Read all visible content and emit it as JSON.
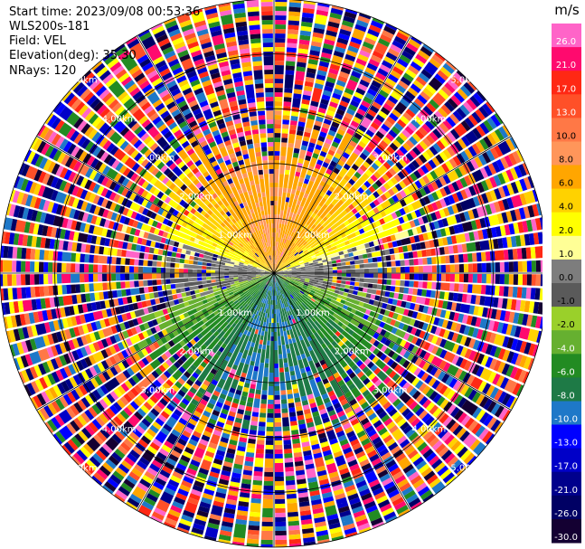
{
  "header": {
    "start_time": "Start time: 2023/09/08 00:53:36",
    "instrument": "WLS200s-181",
    "field": "Field: VEL",
    "elevation": "Elevation(deg): 35.30",
    "nrays": "NRays: 120"
  },
  "chart_data": {
    "type": "heatmap",
    "projection": "polar PPI",
    "field": "VEL",
    "unit": "m/s",
    "nrays": 120,
    "elevation_deg": 35.3,
    "range_rings_km": [
      1.0,
      2.0,
      3.0,
      4.0,
      5.0
    ],
    "range_ring_labels": [
      "1.00km",
      "2.00km",
      "3.00km",
      "4.00km",
      "5.00km"
    ],
    "max_range_km": 5.0,
    "colorbar": {
      "ticks": [
        "26.0",
        "21.0",
        "17.0",
        "13.0",
        "10.0",
        "8.0",
        "6.0",
        "4.0",
        "2.0",
        "1.0",
        "0.0",
        "-1.0",
        "-2.0",
        "-4.0",
        "-6.0",
        "-8.0",
        "-10.0",
        "-13.0",
        "-17.0",
        "-21.0",
        "-26.0",
        "-30.0"
      ],
      "colors": [
        "#ff64c8",
        "#ff0a6e",
        "#ff2814",
        "#ff5028",
        "#ff7846",
        "#ff965a",
        "#ffa600",
        "#ffd200",
        "#ffff00",
        "#ffff96",
        "#7d7d7d",
        "#5a5a5a",
        "#9ad02a",
        "#66b030",
        "#228b22",
        "#1e7a46",
        "#1e78c8",
        "#0000ff",
        "#0000c8",
        "#00008c",
        "#000064",
        "#140032"
      ]
    },
    "pattern": {
      "inner_radius_km": 1.6,
      "outer_noise_from_km": 3.0,
      "north_sector": "positive 6 to 10 m/s",
      "south_sector": "negative -6 to -10 m/s",
      "east_west_sector": "near 0 m/s"
    }
  }
}
